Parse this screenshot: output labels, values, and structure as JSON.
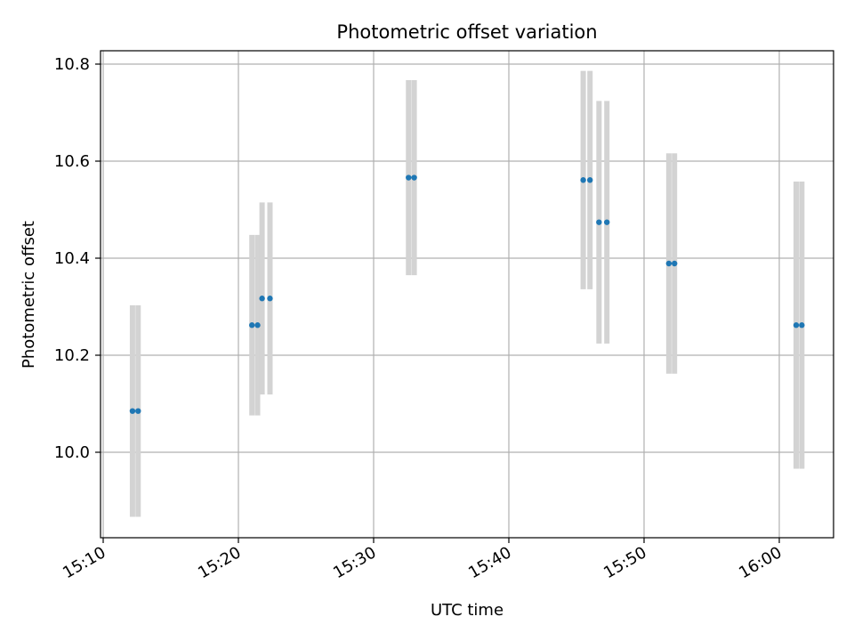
{
  "chart_data": {
    "type": "scatter",
    "title": "Photometric offset variation",
    "xlabel": "UTC time",
    "ylabel": "Photometric offset",
    "x_ticks": [
      "15:10",
      "15:20",
      "15:30",
      "15:40",
      "15:50",
      "16:00"
    ],
    "y_ticks": [
      "10.0",
      "10.2",
      "10.4",
      "10.6",
      "10.8"
    ],
    "x_range": [
      "15:10",
      "16:04"
    ],
    "ylim": [
      9.83,
      10.83
    ],
    "grid": true,
    "colors": {
      "points": "#1f77b4",
      "error_bars": "#d3d3d3",
      "grid": "#b0b0b0"
    },
    "series": [
      {
        "points": [
          {
            "time": "15:12:10",
            "y": 10.085,
            "err": 0.218
          },
          {
            "time": "15:12:35",
            "y": 10.085,
            "err": 0.218
          },
          {
            "time": "15:21:00",
            "y": 10.262,
            "err": 0.186
          },
          {
            "time": "15:21:25",
            "y": 10.262,
            "err": 0.186
          },
          {
            "time": "15:21:45",
            "y": 10.317,
            "err": 0.198
          },
          {
            "time": "15:22:20",
            "y": 10.317,
            "err": 0.198
          },
          {
            "time": "15:32:35",
            "y": 10.566,
            "err": 0.201
          },
          {
            "time": "15:33:00",
            "y": 10.566,
            "err": 0.201
          },
          {
            "time": "15:45:30",
            "y": 10.561,
            "err": 0.225
          },
          {
            "time": "15:46:00",
            "y": 10.561,
            "err": 0.225
          },
          {
            "time": "15:46:40",
            "y": 10.474,
            "err": 0.25
          },
          {
            "time": "15:47:15",
            "y": 10.474,
            "err": 0.25
          },
          {
            "time": "15:51:50",
            "y": 10.389,
            "err": 0.227
          },
          {
            "time": "15:52:15",
            "y": 10.389,
            "err": 0.227
          },
          {
            "time": "16:01:15",
            "y": 10.262,
            "err": 0.296
          },
          {
            "time": "16:01:40",
            "y": 10.262,
            "err": 0.296
          }
        ]
      }
    ]
  }
}
